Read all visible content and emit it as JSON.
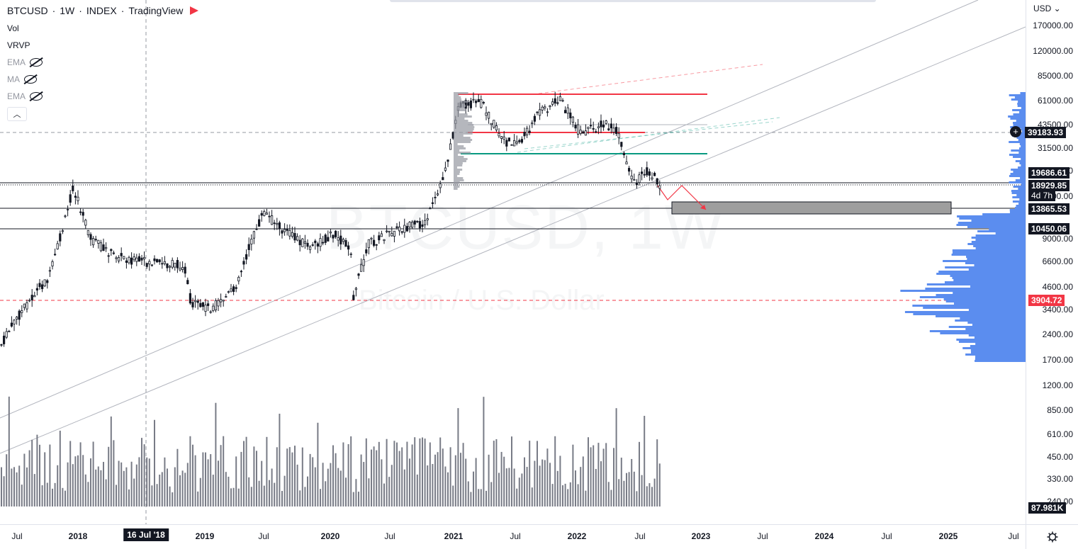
{
  "header": {
    "symbol": "BTCUSD",
    "interval": "1W",
    "exchange": "INDEX",
    "platform": "TradingView",
    "separator": "·"
  },
  "indicators": [
    {
      "label": "Vol",
      "hidden": false
    },
    {
      "label": "VRVP",
      "hidden": false
    },
    {
      "label": "EMA",
      "hidden": true
    },
    {
      "label": "MA",
      "hidden": true
    },
    {
      "label": "EMA",
      "hidden": true
    }
  ],
  "collapse_icon": "chevron-up-icon",
  "watermark": {
    "symbol": "BTCUSD, 1W",
    "description": "Bitcoin / U.S. Dollar"
  },
  "price_scale": {
    "currency": "USD",
    "ticks": [
      "170000.00",
      "120000.00",
      "85000.00",
      "61000.00",
      "43500.00",
      "31500.00",
      "22500.00",
      "12500.00",
      "9000.00",
      "6600.00",
      "4600.00",
      "3400.00",
      "2400.00",
      "1700.00",
      "1200.00",
      "850.00",
      "610.00",
      "450.00",
      "330.00",
      "240.00"
    ],
    "labels": [
      {
        "text": "39183.93",
        "style": "dark"
      },
      {
        "text": "19686.61",
        "style": "dark"
      },
      {
        "text": "18929.85",
        "style": "dark"
      },
      {
        "text": "4d 7h",
        "style": "dark"
      },
      {
        "text": "13865.53",
        "style": "dark"
      },
      {
        "text": "10450.06",
        "style": "dark"
      },
      {
        "text": "3904.72",
        "style": "red"
      },
      {
        "text": "87.981K",
        "style": "dark"
      }
    ]
  },
  "time_scale": {
    "labels": [
      {
        "text": "Jul",
        "bold": false
      },
      {
        "text": "2018",
        "bold": true
      },
      {
        "text": "16 Jul '18",
        "bold": true,
        "crosshair": true
      },
      {
        "text": "2019",
        "bold": true
      },
      {
        "text": "Jul",
        "bold": false
      },
      {
        "text": "2020",
        "bold": true
      },
      {
        "text": "Jul",
        "bold": false
      },
      {
        "text": "2021",
        "bold": true
      },
      {
        "text": "Jul",
        "bold": false
      },
      {
        "text": "2022",
        "bold": true
      },
      {
        "text": "Jul",
        "bold": false
      },
      {
        "text": "2023",
        "bold": true
      },
      {
        "text": "Jul",
        "bold": false
      },
      {
        "text": "2024",
        "bold": true
      },
      {
        "text": "Jul",
        "bold": false
      },
      {
        "text": "2025",
        "bold": true
      },
      {
        "text": "Jul",
        "bold": false
      }
    ]
  },
  "colors": {
    "candle": "#131722",
    "volume": "#787b86",
    "vrvp": "#5b8def",
    "red_line": "#f23645",
    "green_line": "#089981",
    "zone": "#9e9e9e"
  }
}
